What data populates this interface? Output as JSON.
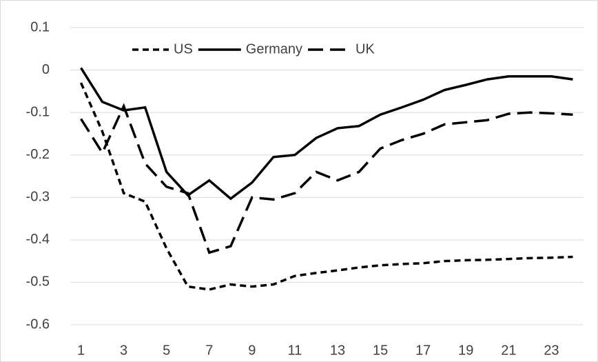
{
  "chart_data": {
    "type": "line",
    "x": [
      1,
      2,
      3,
      4,
      5,
      6,
      7,
      8,
      9,
      10,
      11,
      12,
      13,
      14,
      15,
      16,
      17,
      18,
      19,
      20,
      21,
      22,
      23,
      24
    ],
    "xlim": [
      0.5,
      24.5
    ],
    "xticks": [
      1,
      3,
      5,
      7,
      9,
      11,
      13,
      15,
      17,
      19,
      21,
      23
    ],
    "ylim": [
      -0.6,
      0.1
    ],
    "yticks": [
      0.1,
      0,
      -0.1,
      -0.2,
      -0.3,
      -0.4,
      -0.5,
      -0.6
    ],
    "grid": true,
    "legend": "top",
    "series": [
      {
        "name": "US",
        "color": "#000000",
        "dash": "short",
        "values": [
          -0.03,
          -0.145,
          -0.29,
          -0.31,
          -0.42,
          -0.51,
          -0.517,
          -0.505,
          -0.51,
          -0.505,
          -0.485,
          -0.478,
          -0.472,
          -0.465,
          -0.46,
          -0.457,
          -0.455,
          -0.45,
          -0.448,
          -0.447,
          -0.445,
          -0.443,
          -0.442,
          -0.44
        ]
      },
      {
        "name": "Germany",
        "color": "#000000",
        "dash": "solid",
        "values": [
          0.005,
          -0.075,
          -0.095,
          -0.088,
          -0.24,
          -0.295,
          -0.26,
          -0.303,
          -0.265,
          -0.205,
          -0.2,
          -0.16,
          -0.137,
          -0.132,
          -0.105,
          -0.088,
          -0.07,
          -0.047,
          -0.035,
          -0.022,
          -0.015,
          -0.015,
          -0.015,
          -0.022
        ]
      },
      {
        "name": "UK",
        "color": "#000000",
        "dash": "long",
        "values": [
          -0.115,
          -0.195,
          -0.085,
          -0.22,
          -0.275,
          -0.29,
          -0.43,
          -0.415,
          -0.3,
          -0.305,
          -0.29,
          -0.24,
          -0.26,
          -0.24,
          -0.185,
          -0.165,
          -0.15,
          -0.128,
          -0.123,
          -0.118,
          -0.103,
          -0.1,
          -0.102,
          -0.105
        ]
      }
    ]
  }
}
